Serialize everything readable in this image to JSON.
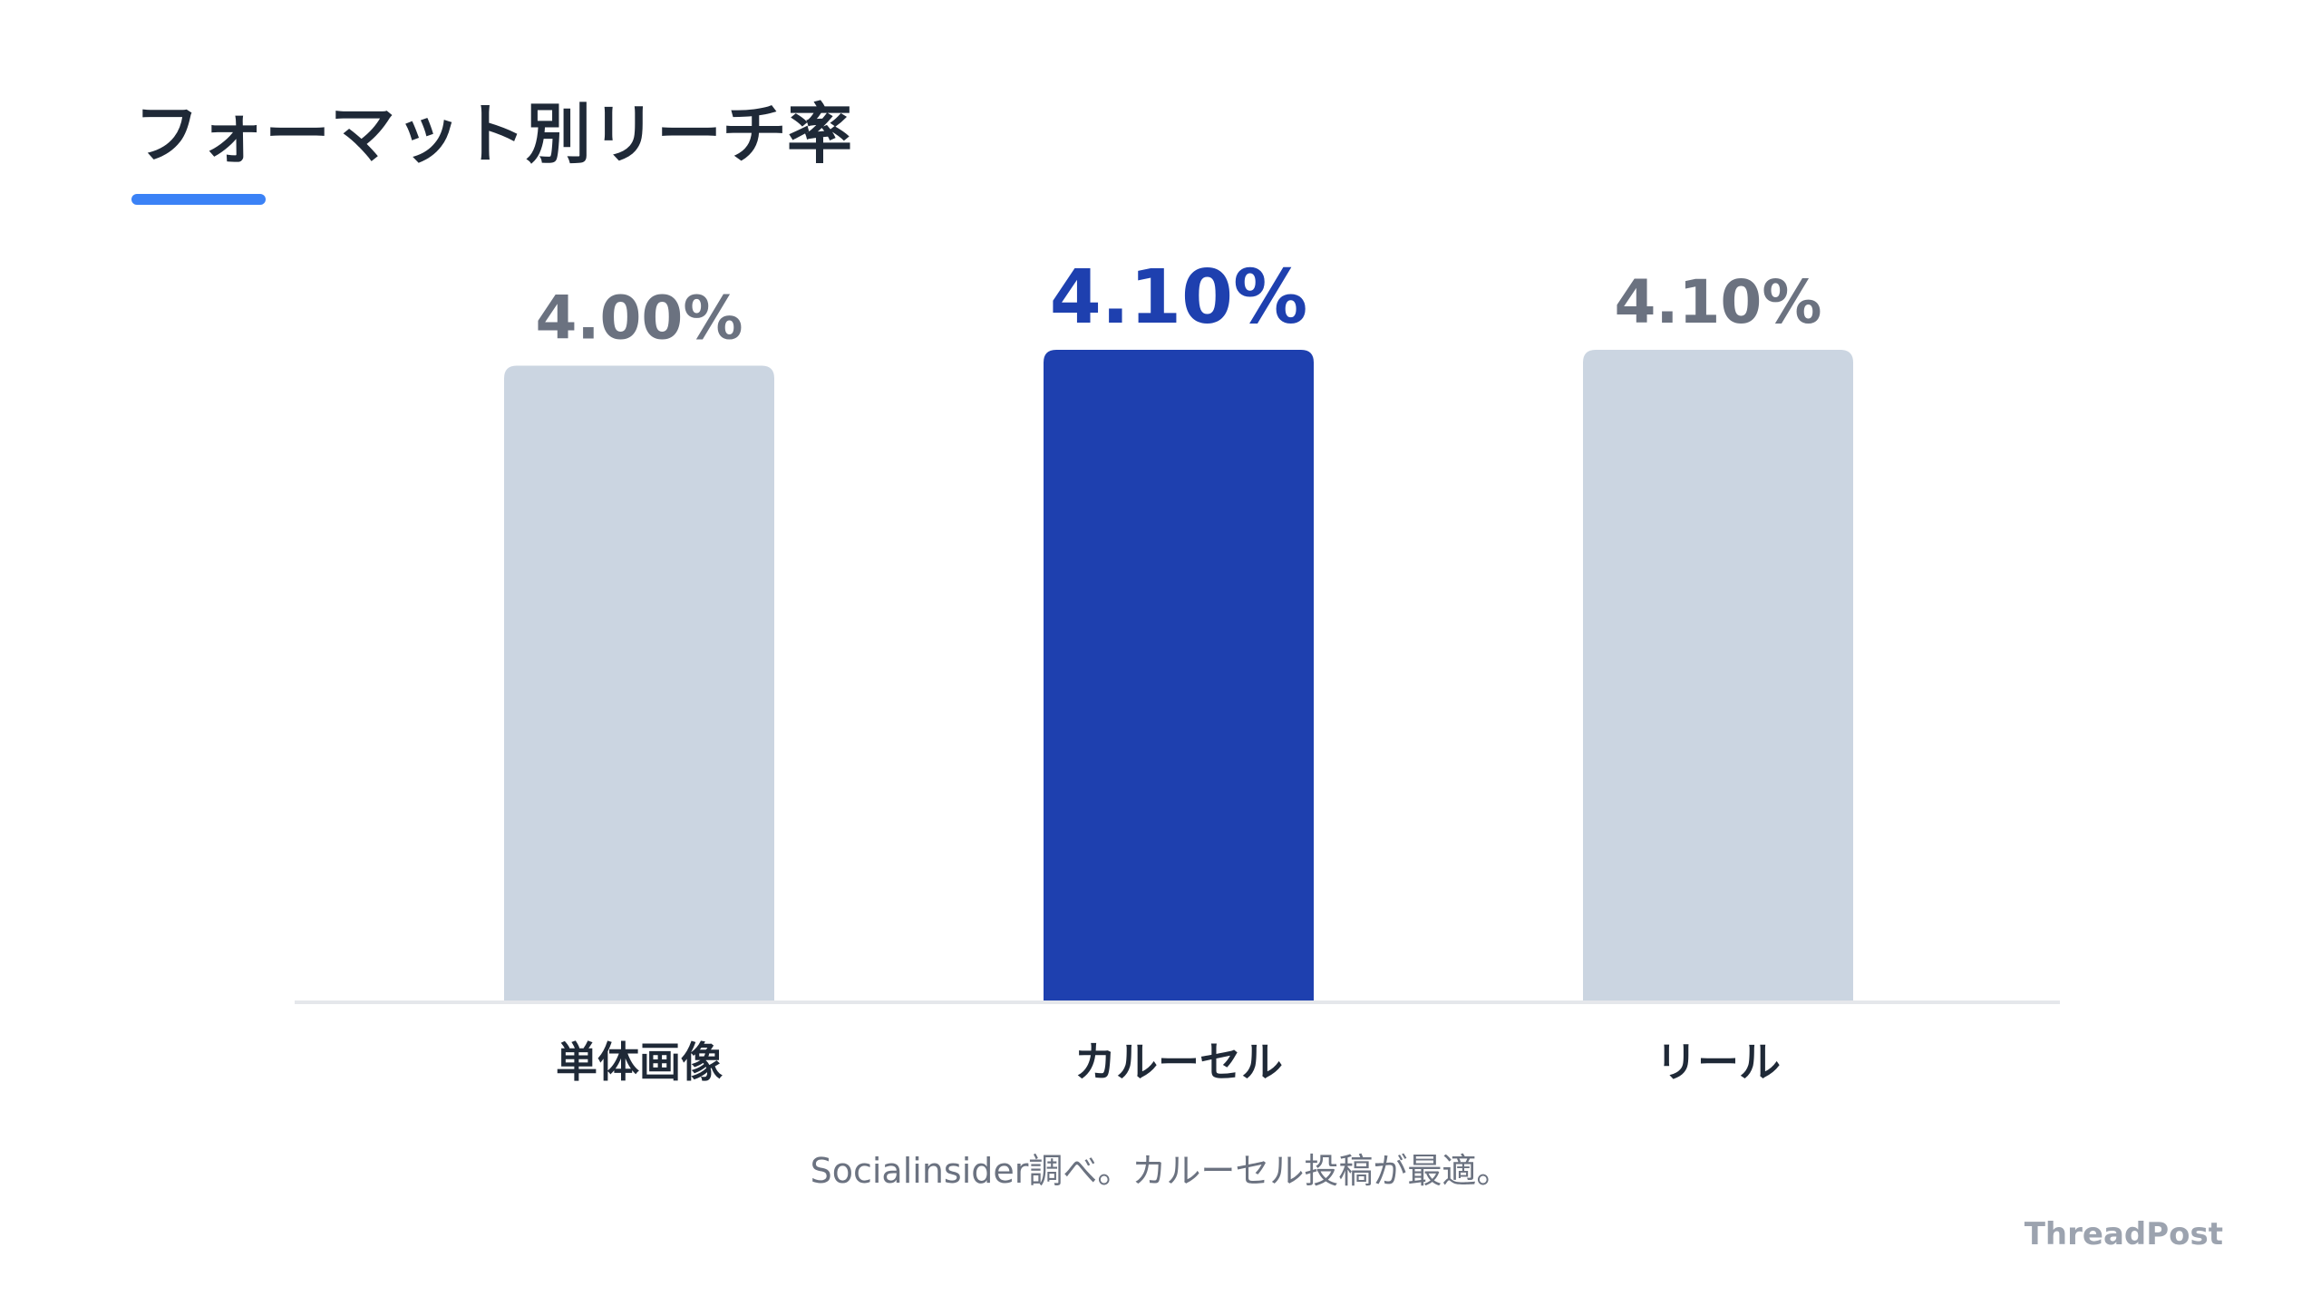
{
  "page": {
    "title": "フォーマット別リーチ率",
    "caption": "Socialinsider調べ。カルーセル投稿が最適。",
    "brand": "ThreadPost"
  },
  "colors": {
    "bar_default": "#cbd5e1",
    "bar_highlight": "#1e40af",
    "label_default": "#6b7280",
    "label_highlight": "#1e40af",
    "category_label": "#1f2937",
    "axis": "#e5e7eb",
    "accent": "#3b82f6"
  },
  "chart_data": {
    "type": "bar",
    "categories": [
      "単体画像",
      "カルーセル",
      "リール"
    ],
    "values": [
      4.0,
      4.1,
      4.1
    ],
    "value_labels": [
      "4.00%",
      "4.10%",
      "4.10%"
    ],
    "highlight_index": 1,
    "title": "フォーマット別リーチ率",
    "xlabel": "",
    "ylabel": "",
    "ylim": [
      0,
      4.1
    ],
    "grid": false,
    "legend": "none"
  }
}
